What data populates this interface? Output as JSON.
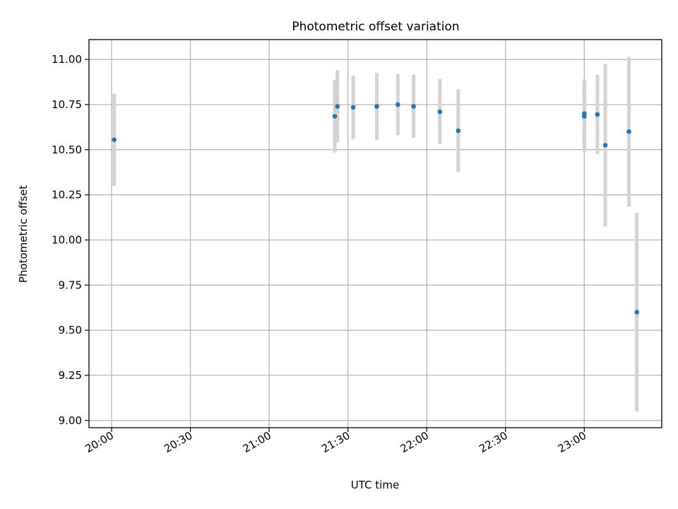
{
  "chart_data": {
    "type": "scatter",
    "title": "Photometric offset variation",
    "xlabel": "UTC time",
    "ylabel": "Photometric offset",
    "x_tick_labels": [
      "20:00",
      "20:30",
      "21:00",
      "21:30",
      "22:00",
      "22:30",
      "23:00"
    ],
    "x_tick_minutes": [
      0,
      30,
      60,
      90,
      120,
      150,
      180
    ],
    "xlim_minutes": [
      -8.6,
      209.5
    ],
    "y_tick_labels": [
      "9.00",
      "9.25",
      "9.50",
      "9.75",
      "10.00",
      "10.25",
      "10.50",
      "10.75",
      "11.00"
    ],
    "y_tick_values": [
      9.0,
      9.25,
      9.5,
      9.75,
      10.0,
      10.25,
      10.5,
      10.75,
      11.0
    ],
    "ylim": [
      8.96,
      11.11
    ],
    "grid": true,
    "x_tick_rotation_deg": 30,
    "points": [
      {
        "x": "20:01",
        "y": 10.555,
        "err": 0.255
      },
      {
        "x": "21:25",
        "y": 10.685,
        "err": 0.2
      },
      {
        "x": "21:26",
        "y": 10.74,
        "err": 0.2
      },
      {
        "x": "21:32",
        "y": 10.735,
        "err": 0.175
      },
      {
        "x": "21:41",
        "y": 10.74,
        "err": 0.185
      },
      {
        "x": "21:49",
        "y": 10.75,
        "err": 0.17
      },
      {
        "x": "21:55",
        "y": 10.74,
        "err": 0.175
      },
      {
        "x": "22:05",
        "y": 10.71,
        "err": 0.18
      },
      {
        "x": "22:12",
        "y": 10.605,
        "err": 0.23
      },
      {
        "x": "23:00",
        "y": 10.685,
        "err": 0.2
      },
      {
        "x": "23:00",
        "y": 10.7,
        "err": 0.19
      },
      {
        "x": "23:05",
        "y": 10.695,
        "err": 0.22
      },
      {
        "x": "23:08",
        "y": 10.525,
        "err": 0.45
      },
      {
        "x": "23:17",
        "y": 10.6,
        "err": 0.415
      },
      {
        "x": "23:20",
        "y": 9.6,
        "err": 0.55
      }
    ],
    "marker_color": "#1f77b4",
    "errorbar_color": "#d3d3d3",
    "grid_color": "#b0b0b0"
  }
}
